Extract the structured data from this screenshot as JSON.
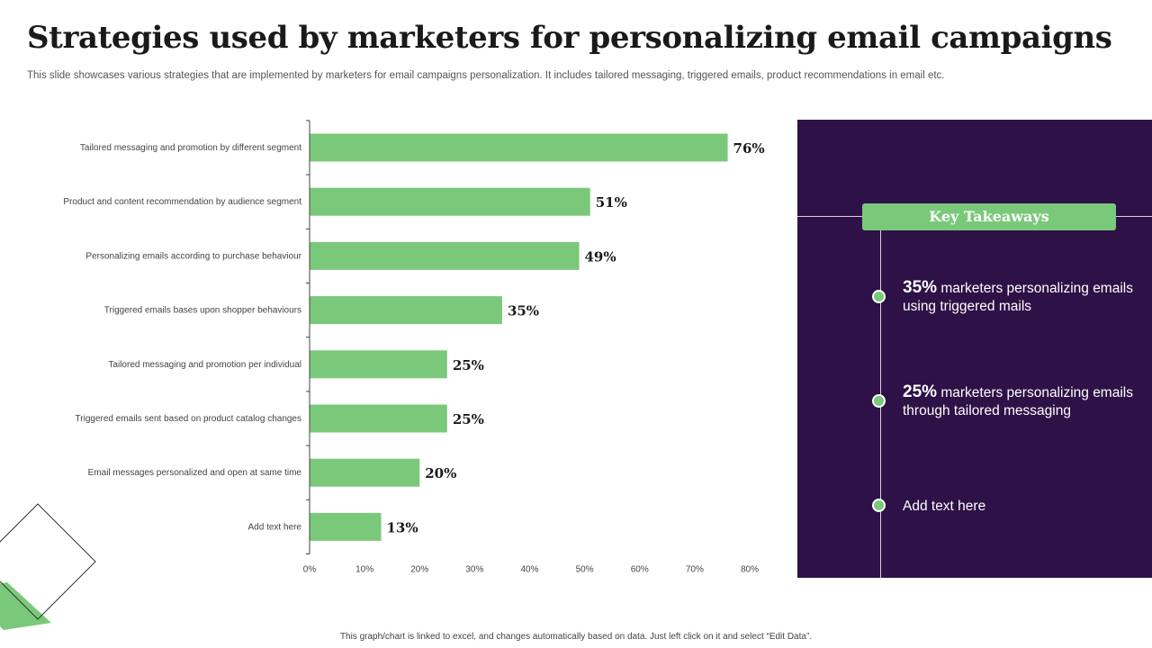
{
  "title": "Strategies used by marketers for personalizing email campaigns",
  "subtitle": "This slide showcases various strategies that are implemented by marketers for email campaigns personalization. It includes tailored messaging, triggered emails, product recommendations in email etc.",
  "footer": "This graph/chart is linked to excel, and changes automatically based on data. Just left click on it and select “Edit Data”.",
  "chart_data": {
    "type": "bar",
    "orientation": "horizontal",
    "title": "",
    "xlabel": "",
    "ylabel": "",
    "categories": [
      "Tailored messaging and promotion by different segment",
      "Product and content recommendation by audience segment",
      "Personalizing emails according to purchase behaviour",
      "Triggered emails bases upon shopper behaviours",
      "Tailored messaging and promotion per individual",
      "Triggered emails sent based on product catalog changes",
      "Email messages personalized and open at same time",
      "Add text here"
    ],
    "values": [
      76,
      51,
      49,
      35,
      25,
      25,
      20,
      13
    ],
    "value_labels": [
      "76%",
      "51%",
      "49%",
      "35%",
      "25%",
      "25%",
      "20%",
      "13%"
    ],
    "xlim": [
      0,
      80
    ],
    "xticks": [
      0,
      10,
      20,
      30,
      40,
      50,
      60,
      70,
      80
    ],
    "xtick_labels": [
      "0%",
      "10%",
      "20%",
      "30%",
      "40%",
      "50%",
      "60%",
      "70%",
      "80%"
    ],
    "grid": false,
    "bar_color": "#7ac97a"
  },
  "takeaways": {
    "heading": "Key Takeaways",
    "items": [
      {
        "value": "35%",
        "text": " marketers personalizing emails using triggered mails"
      },
      {
        "value": "25%",
        "text": " marketers personalizing emails through tailored messaging"
      },
      {
        "value": "",
        "text": "Add text here"
      }
    ]
  },
  "colors": {
    "accent": "#7ac97a",
    "panel": "#2e1146",
    "title": "#1a1a1a"
  }
}
